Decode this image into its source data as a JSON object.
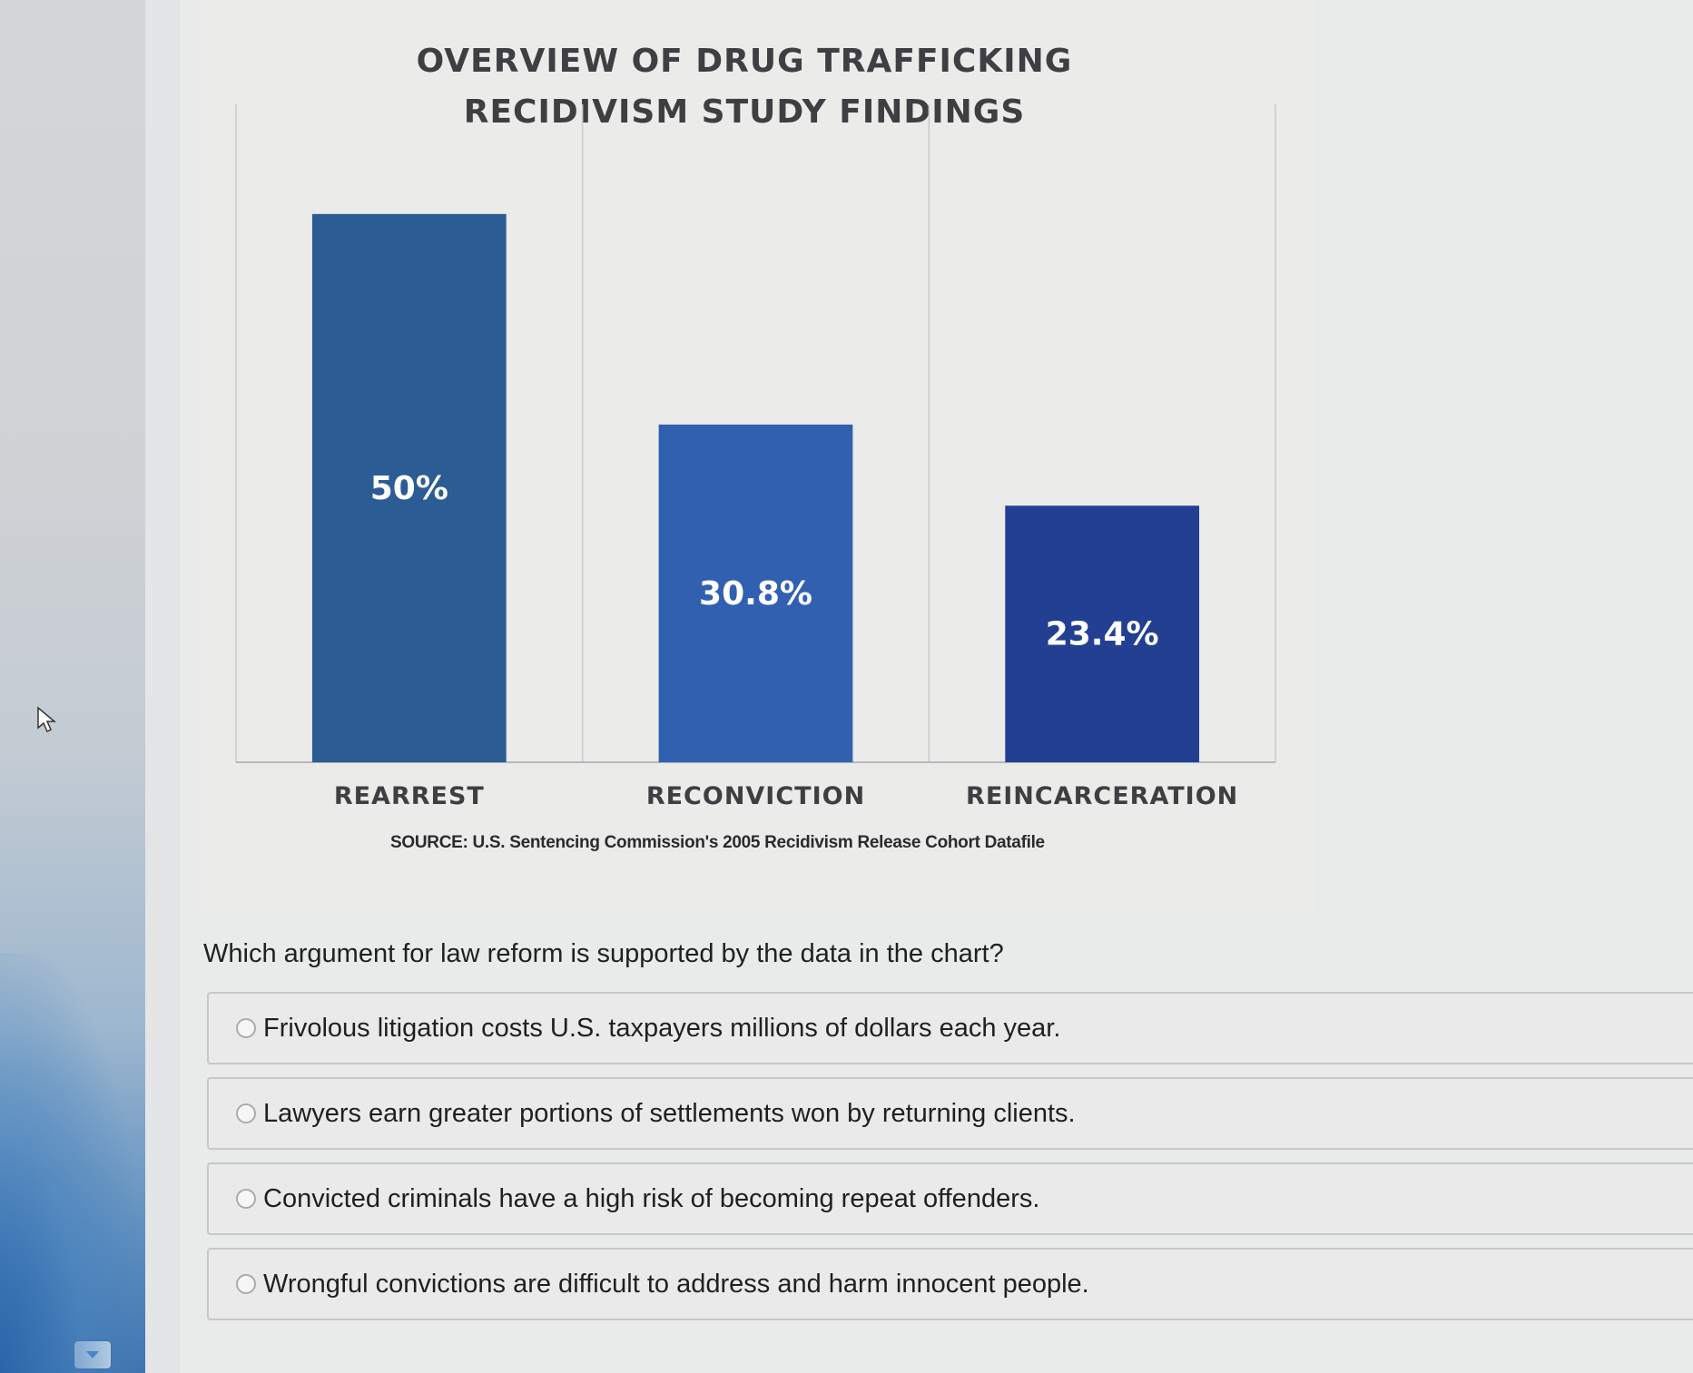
{
  "chart_data": {
    "type": "bar",
    "title": "OVERVIEW OF DRUG TRAFFICKING RECIDIVISM STUDY FINDINGS",
    "categories": [
      "REARREST",
      "RECONVICTION",
      "REINCARCERATION"
    ],
    "values": [
      50,
      30.8,
      23.4
    ],
    "value_labels": [
      "50%",
      "30.8%",
      "23.4%"
    ],
    "colors": [
      "#2b5c93",
      "#3260b0",
      "#233f91"
    ],
    "ylim": [
      0,
      60
    ],
    "grid": false,
    "source": "SOURCE: U.S. Sentencing Commission's 2005 Recidivism Release Cohort Datafile"
  },
  "question": {
    "prompt": "Which argument for law reform is supported by the data in the chart?",
    "options": [
      "Frivolous litigation costs U.S. taxpayers millions of dollars each year.",
      "Lawyers earn greater portions of settlements won by returning clients.",
      "Convicted criminals have a high risk of becoming repeat offenders.",
      "Wrongful convictions are difficult to address and harm innocent people."
    ]
  },
  "icons": {
    "cursor": "mouse-pointer-icon",
    "scroll": "chevron-down-icon",
    "radio": "radio-button-icon"
  }
}
